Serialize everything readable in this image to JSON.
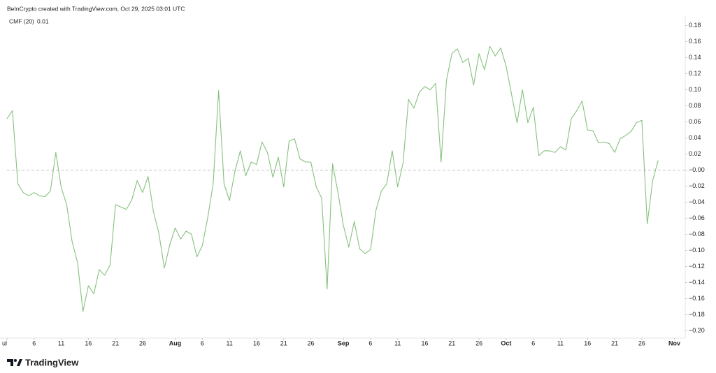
{
  "chart_data": {
    "type": "line",
    "title": "BeInCrypto created with TradingView.com, Oct 29, 2025 03:01 UTC",
    "brand": "TradingView",
    "legend_value": 0.01,
    "baseline": 0,
    "xlim": [
      0,
      125
    ],
    "ylim": [
      -0.21,
      0.19
    ],
    "xticks": [
      {
        "value": 0,
        "label": "ul"
      },
      {
        "value": 5,
        "label": "6"
      },
      {
        "value": 10,
        "label": "11"
      },
      {
        "value": 15,
        "label": "16"
      },
      {
        "value": 20,
        "label": "21"
      },
      {
        "value": 25,
        "label": "26"
      },
      {
        "value": 31,
        "label": "Aug"
      },
      {
        "value": 36,
        "label": "6"
      },
      {
        "value": 41,
        "label": "11"
      },
      {
        "value": 46,
        "label": "16"
      },
      {
        "value": 51,
        "label": "21"
      },
      {
        "value": 56,
        "label": "26"
      },
      {
        "value": 62,
        "label": "Sep"
      },
      {
        "value": 67,
        "label": "6"
      },
      {
        "value": 72,
        "label": "11"
      },
      {
        "value": 77,
        "label": "16"
      },
      {
        "value": 82,
        "label": "21"
      },
      {
        "value": 87,
        "label": "26"
      },
      {
        "value": 92,
        "label": "Oct"
      },
      {
        "value": 97,
        "label": "6"
      },
      {
        "value": 102,
        "label": "11"
      },
      {
        "value": 107,
        "label": "16"
      },
      {
        "value": 112,
        "label": "21"
      },
      {
        "value": 117,
        "label": "26"
      },
      {
        "value": 123,
        "label": "Nov"
      }
    ],
    "yticks": [
      {
        "value": 0.18,
        "label": "0.18"
      },
      {
        "value": 0.16,
        "label": "0.16"
      },
      {
        "value": 0.14,
        "label": "0.14"
      },
      {
        "value": 0.12,
        "label": "0.12"
      },
      {
        "value": 0.1,
        "label": "0.10"
      },
      {
        "value": 0.08,
        "label": "0.08"
      },
      {
        "value": 0.06,
        "label": "0.06"
      },
      {
        "value": 0.04,
        "label": "0.04"
      },
      {
        "value": 0.02,
        "label": "0.02"
      },
      {
        "value": 0,
        "label": "−0.00"
      },
      {
        "value": -0.02,
        "label": "−0.02"
      },
      {
        "value": -0.04,
        "label": "−0.04"
      },
      {
        "value": -0.06,
        "label": "−0.06"
      },
      {
        "value": -0.08,
        "label": "−0.08"
      },
      {
        "value": -0.1,
        "label": "−0.10"
      },
      {
        "value": -0.12,
        "label": "−0.12"
      },
      {
        "value": -0.14,
        "label": "−0.14"
      },
      {
        "value": -0.16,
        "label": "−0.16"
      },
      {
        "value": -0.18,
        "label": "−0.18"
      },
      {
        "value": -0.2,
        "label": "−0.20"
      }
    ],
    "x": [
      0,
      1,
      2,
      3,
      4,
      5,
      6,
      7,
      8,
      9,
      10,
      11,
      12,
      13,
      14,
      15,
      16,
      17,
      18,
      19,
      20,
      21,
      22,
      23,
      24,
      25,
      26,
      27,
      28,
      29,
      30,
      31,
      32,
      33,
      34,
      35,
      36,
      37,
      38,
      39,
      40,
      41,
      42,
      43,
      44,
      45,
      46,
      47,
      48,
      49,
      50,
      51,
      52,
      53,
      54,
      55,
      56,
      57,
      58,
      59,
      60,
      61,
      62,
      63,
      64,
      65,
      66,
      67,
      68,
      69,
      70,
      71,
      72,
      73,
      74,
      75,
      76,
      77,
      78,
      79,
      80,
      81,
      82,
      83,
      84,
      85,
      86,
      87,
      88,
      89,
      90,
      91,
      92,
      93,
      94,
      95,
      96,
      97,
      98,
      99,
      100,
      101,
      102,
      103,
      104,
      105,
      106,
      107,
      108,
      109,
      110,
      111,
      112,
      113,
      114,
      115,
      116,
      117,
      118,
      119,
      120
    ],
    "series": [
      {
        "name": "CMF (20)",
        "color": "#86c27d",
        "values": [
          0.064,
          0.074,
          -0.017,
          -0.028,
          -0.032,
          -0.028,
          -0.032,
          -0.033,
          -0.026,
          0.022,
          -0.022,
          -0.043,
          -0.089,
          -0.115,
          -0.176,
          -0.144,
          -0.154,
          -0.124,
          -0.131,
          -0.118,
          -0.043,
          -0.046,
          -0.049,
          -0.037,
          -0.013,
          -0.028,
          -0.008,
          -0.052,
          -0.079,
          -0.122,
          -0.093,
          -0.072,
          -0.086,
          -0.076,
          -0.08,
          -0.108,
          -0.094,
          -0.059,
          -0.017,
          0.099,
          -0.017,
          -0.038,
          -0.002,
          0.024,
          -0.007,
          0.01,
          0.007,
          0.035,
          0.022,
          -0.009,
          0.016,
          -0.021,
          0.036,
          0.039,
          0.014,
          0.01,
          0.01,
          -0.021,
          -0.035,
          -0.148,
          0.008,
          -0.028,
          -0.069,
          -0.096,
          -0.064,
          -0.098,
          -0.104,
          -0.099,
          -0.05,
          -0.026,
          -0.017,
          0.024,
          -0.021,
          0.009,
          0.088,
          0.077,
          0.097,
          0.104,
          0.1,
          0.108,
          0.01,
          0.112,
          0.145,
          0.151,
          0.134,
          0.139,
          0.106,
          0.145,
          0.125,
          0.154,
          0.142,
          0.152,
          0.129,
          0.094,
          0.059,
          0.1,
          0.059,
          0.078,
          0.018,
          0.024,
          0.024,
          0.022,
          0.029,
          0.025,
          0.064,
          0.074,
          0.086,
          0.05,
          0.049,
          0.034,
          0.035,
          0.033,
          0.022,
          0.039,
          0.043,
          0.048,
          0.059,
          0.062,
          -0.067,
          -0.013,
          0.012
        ]
      }
    ]
  }
}
